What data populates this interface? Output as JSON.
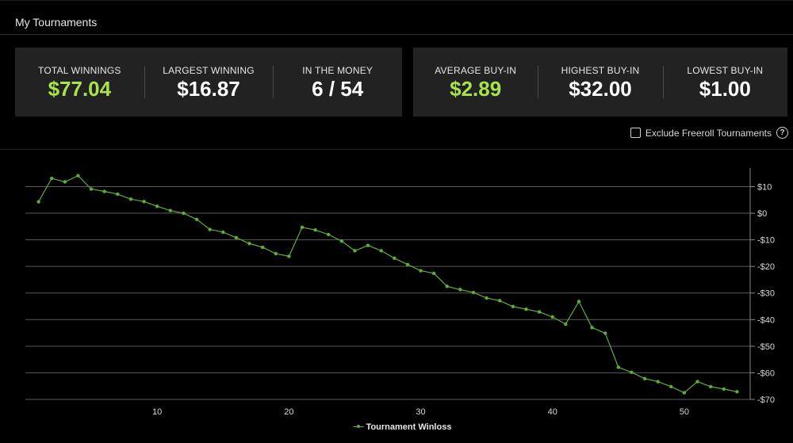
{
  "header": {
    "title": "My Tournaments"
  },
  "stats_left": [
    {
      "label": "TOTAL WINNINGS",
      "value": "$77.04",
      "accent": true
    },
    {
      "label": "LARGEST WINNING",
      "value": "$16.87",
      "accent": false
    },
    {
      "label": "IN THE MONEY",
      "value": "6 / 54",
      "accent": false
    }
  ],
  "stats_right": [
    {
      "label": "AVERAGE BUY-IN",
      "value": "$2.89",
      "accent": true
    },
    {
      "label": "HIGHEST BUY-IN",
      "value": "$32.00",
      "accent": false
    },
    {
      "label": "LOWEST BUY-IN",
      "value": "$1.00",
      "accent": false
    }
  ],
  "filter": {
    "exclude_freeroll_label": "Exclude Freeroll Tournaments",
    "checked": false,
    "help_glyph": "?"
  },
  "colors": {
    "accent": "#a9e34b",
    "series": "#5fae33",
    "card_bg": "#222222",
    "grid": "#5a5a5a"
  },
  "chart_data": {
    "type": "line",
    "title": "",
    "xlabel": "",
    "ylabel": "",
    "xlim": [
      0,
      55
    ],
    "ylim": [
      -70,
      17
    ],
    "x_ticks": [
      10,
      20,
      30,
      40,
      50
    ],
    "y_ticks": [
      10,
      0,
      -10,
      -20,
      -30,
      -40,
      -50,
      -60,
      -70
    ],
    "y_tick_labels": [
      "$10",
      "$0",
      "-$10",
      "-$20",
      "-$30",
      "-$40",
      "-$50",
      "-$60",
      "-$70"
    ],
    "x_tick_labels": [
      "10",
      "20",
      "30",
      "40",
      "50"
    ],
    "grid": true,
    "legend": "bottom-center",
    "series": [
      {
        "name": "Tournament Winloss",
        "x": [
          1,
          2,
          3,
          4,
          5,
          6,
          7,
          8,
          9,
          10,
          11,
          12,
          13,
          14,
          15,
          16,
          17,
          18,
          19,
          20,
          21,
          22,
          23,
          24,
          25,
          26,
          27,
          28,
          29,
          30,
          31,
          32,
          33,
          34,
          35,
          36,
          37,
          38,
          39,
          40,
          41,
          42,
          43,
          44,
          45,
          46,
          47,
          48,
          49,
          50,
          51,
          52,
          53,
          54
        ],
        "y": [
          4.3,
          13.1,
          11.8,
          14.1,
          9.1,
          8.2,
          7.2,
          5.3,
          4.4,
          2.6,
          1.0,
          0.0,
          -2.3,
          -6.1,
          -7.1,
          -9.2,
          -11.4,
          -12.8,
          -15.2,
          -16.2,
          -5.3,
          -6.3,
          -8.0,
          -10.5,
          -14.1,
          -12.1,
          -14.1,
          -16.9,
          -19.3,
          -21.6,
          -22.6,
          -27.5,
          -28.7,
          -29.8,
          -31.9,
          -32.9,
          -35.1,
          -36.1,
          -37.1,
          -39.0,
          -41.7,
          -33.2,
          -43.0,
          -45.1,
          -57.9,
          -59.8,
          -62.2,
          -63.3,
          -65.2,
          -67.5,
          -63.3,
          -65.2,
          -66.1,
          -67.1
        ]
      }
    ]
  }
}
